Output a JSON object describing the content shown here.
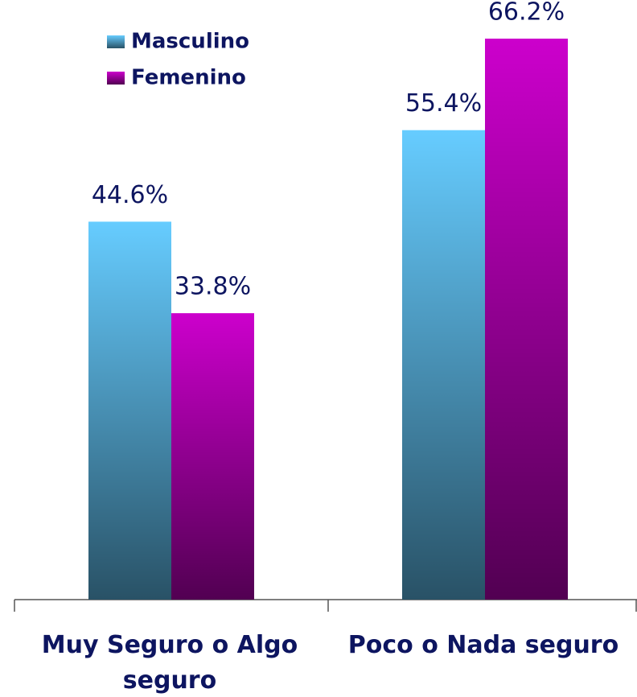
{
  "chart_data": {
    "type": "bar",
    "categories": [
      "Muy Seguro o Algo seguro",
      "Poco o Nada seguro"
    ],
    "series": [
      {
        "name": "Masculino",
        "color": "#66ccff",
        "values": [
          44.6,
          55.4
        ],
        "value_labels": [
          "44.6%",
          "55.4%"
        ]
      },
      {
        "name": "Femenino",
        "color": "#cc00cc",
        "values": [
          33.8,
          66.2
        ],
        "value_labels": [
          "33.8%",
          "66.2%"
        ]
      }
    ],
    "legend": "top-left"
  }
}
